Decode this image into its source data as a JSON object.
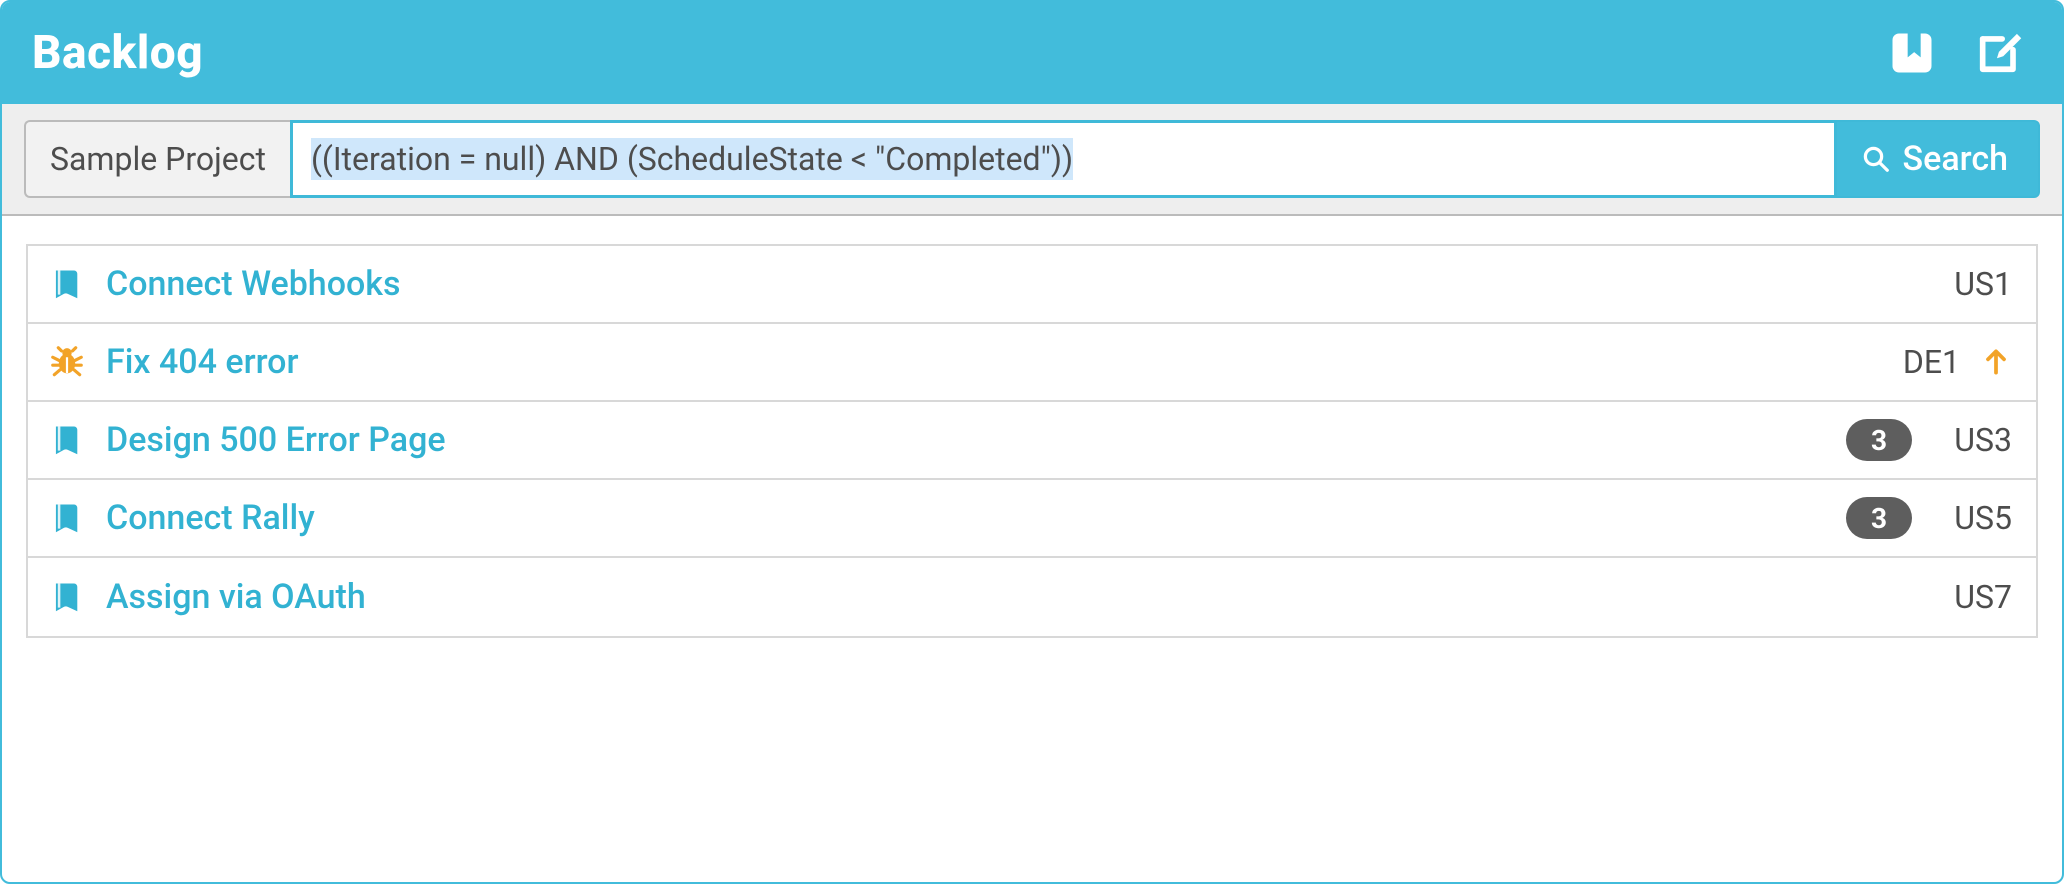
{
  "colors": {
    "header_bg": "#42bcdb",
    "header_fg": "#ffffff",
    "toolbar_bg": "#eeeeee",
    "link": "#32b2d2",
    "bug": "#f2a328",
    "pill_bg": "#5e5e5e",
    "pill_fg": "#ffffff",
    "text": "#4d4d4d",
    "row_border": "#d8d8d8",
    "selection_bg": "#cfe7fb"
  },
  "header": {
    "title": "Backlog",
    "icons": [
      "bookmark",
      "edit"
    ]
  },
  "toolbar": {
    "project_label": "Sample Project",
    "query": "((Iteration = null) AND (ScheduleState < \"Completed\"))",
    "query_selected": true,
    "search_label": "Search"
  },
  "items": [
    {
      "type": "story",
      "icon": "story-icon",
      "title": "Connect Webhooks",
      "points": null,
      "id": "US1",
      "priority_up": false
    },
    {
      "type": "defect",
      "icon": "bug-icon",
      "title": "Fix 404 error",
      "points": null,
      "id": "DE1",
      "priority_up": true
    },
    {
      "type": "story",
      "icon": "story-icon",
      "title": "Design 500 Error Page",
      "points": 3,
      "id": "US3",
      "priority_up": false
    },
    {
      "type": "story",
      "icon": "story-icon",
      "title": "Connect Rally",
      "points": 3,
      "id": "US5",
      "priority_up": false
    },
    {
      "type": "story",
      "icon": "story-icon",
      "title": "Assign via OAuth",
      "points": null,
      "id": "US7",
      "priority_up": false
    }
  ]
}
